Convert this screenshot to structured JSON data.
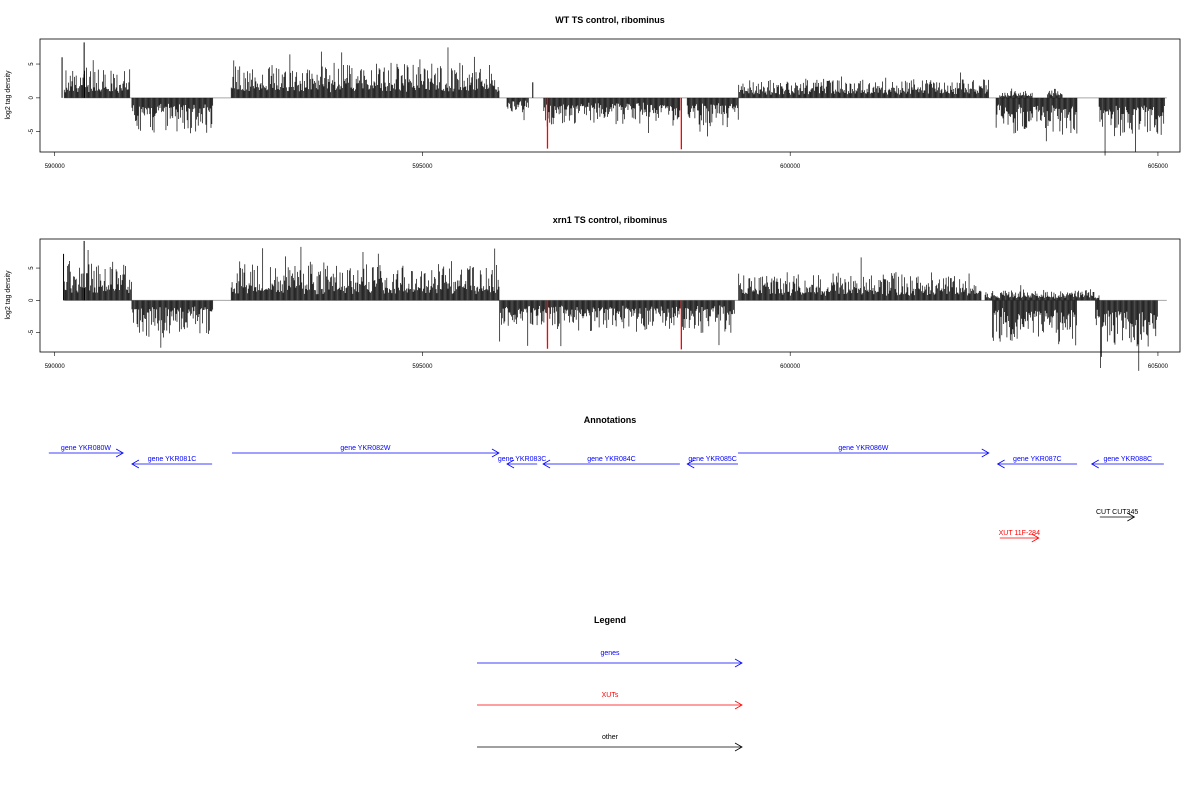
{
  "chart_data": [
    {
      "type": "bar",
      "title": "WT TS control, ribominus",
      "ylabel": "log2 tag density",
      "xlim": [
        589800,
        605300
      ],
      "ylim": [
        -8,
        8.7
      ],
      "xticks": [
        "590000",
        "595000",
        "600000",
        "605000"
      ],
      "yticks": [
        "-5",
        "0",
        "5"
      ],
      "baseline_color": "#a6a6a6",
      "bar_color": "#000000",
      "highlight_color": "#ff0000",
      "positive_segments": [
        {
          "start": 590130,
          "end": 591030,
          "mean": 2.4
        },
        {
          "start": 592400,
          "end": 596050,
          "mean": 2.7
        },
        {
          "start": 599300,
          "end": 602700,
          "mean": 1.5
        },
        {
          "start": 602850,
          "end": 603300,
          "mean": 0.6
        },
        {
          "start": 603500,
          "end": 603700,
          "mean": 0.8
        }
      ],
      "negative_segments": [
        {
          "start": 591050,
          "end": 592150,
          "mean": -2.8
        },
        {
          "start": 596150,
          "end": 596450,
          "mean": -1.2
        },
        {
          "start": 596650,
          "end": 598500,
          "mean": -2.2
        },
        {
          "start": 598600,
          "end": 599300,
          "mean": -2.5
        },
        {
          "start": 602800,
          "end": 603900,
          "mean": -3.0
        },
        {
          "start": 604200,
          "end": 605100,
          "mean": -3.3
        }
      ],
      "spikes": [
        {
          "x": 590100,
          "y": 6
        },
        {
          "x": 590400,
          "y": 8.2
        },
        {
          "x": 596500,
          "y": 2.3
        },
        {
          "x": 596700,
          "y": -7.5,
          "highlight": true
        },
        {
          "x": 598520,
          "y": -7.6,
          "highlight": true
        }
      ]
    },
    {
      "type": "bar",
      "title": "xrn1 TS control, ribominus",
      "ylabel": "log2 tag density",
      "xlim": [
        589800,
        605300
      ],
      "ylim": [
        -8,
        9.5
      ],
      "xticks": [
        "590000",
        "595000",
        "600000",
        "605000"
      ],
      "yticks": [
        "-5",
        "0",
        "5"
      ],
      "baseline_color": "#a6a6a6",
      "bar_color": "#000000",
      "highlight_color": "#ff0000",
      "positive_segments": [
        {
          "start": 590130,
          "end": 591050,
          "mean": 3.4
        },
        {
          "start": 592400,
          "end": 596050,
          "mean": 3.1
        },
        {
          "start": 599300,
          "end": 602600,
          "mean": 2.3
        },
        {
          "start": 602650,
          "end": 604200,
          "mean": 0.9
        }
      ],
      "negative_segments": [
        {
          "start": 591050,
          "end": 592150,
          "mean": -3.0
        },
        {
          "start": 596050,
          "end": 599250,
          "mean": -2.6
        },
        {
          "start": 602750,
          "end": 603900,
          "mean": -3.8
        },
        {
          "start": 604150,
          "end": 605000,
          "mean": -4.2
        }
      ],
      "spikes": [
        {
          "x": 590120,
          "y": 7.2
        },
        {
          "x": 590400,
          "y": 9.2
        },
        {
          "x": 596700,
          "y": -7.5,
          "highlight": true
        },
        {
          "x": 598520,
          "y": -7.6,
          "highlight": true
        }
      ]
    }
  ],
  "annotations": {
    "title": "Annotations",
    "xlim": [
      589800,
      605300
    ],
    "items": [
      {
        "label": "gene YKR080W",
        "start": 589920,
        "end": 590930,
        "strand": "+",
        "row": 0,
        "color": "#0000ff"
      },
      {
        "label": "gene YKR081C",
        "start": 591050,
        "end": 592140,
        "strand": "-",
        "row": 1,
        "color": "#0000ff"
      },
      {
        "label": "gene YKR082W",
        "start": 592410,
        "end": 596040,
        "strand": "+",
        "row": 0,
        "color": "#0000ff"
      },
      {
        "label": "gene YKR083C",
        "start": 596150,
        "end": 596560,
        "strand": "-",
        "row": 1,
        "color": "#0000ff"
      },
      {
        "label": "gene YKR084C",
        "start": 596640,
        "end": 598500,
        "strand": "-",
        "row": 1,
        "color": "#0000ff"
      },
      {
        "label": "gene YKR085C",
        "start": 598600,
        "end": 599290,
        "strand": "-",
        "row": 1,
        "color": "#0000ff"
      },
      {
        "label": "gene YKR086W",
        "start": 599290,
        "end": 602700,
        "strand": "+",
        "row": 0,
        "color": "#0000ff"
      },
      {
        "label": "gene YKR087C",
        "start": 602820,
        "end": 603900,
        "strand": "-",
        "row": 1,
        "color": "#0000ff"
      },
      {
        "label": "gene YKR088C",
        "start": 604100,
        "end": 605080,
        "strand": "-",
        "row": 1,
        "color": "#0000ff"
      },
      {
        "label": "CUT CUT345",
        "start": 604210,
        "end": 604680,
        "strand": "+",
        "row": 2,
        "color": "#000000"
      },
      {
        "label": "XUT 11F-284",
        "start": 602850,
        "end": 603380,
        "strand": "+",
        "row": 3,
        "color": "#ff0000"
      }
    ]
  },
  "legend": {
    "title": "Legend",
    "items": [
      {
        "label": "genes",
        "color": "#0000ff"
      },
      {
        "label": "XUTs",
        "color": "#ff0000"
      },
      {
        "label": "other",
        "color": "#000000"
      }
    ]
  }
}
